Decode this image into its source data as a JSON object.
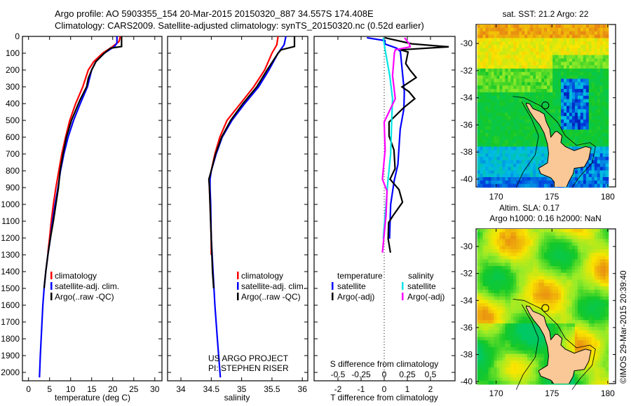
{
  "header": {
    "line1": "Argo profile: AO 5903355_154 20-Mar-2015 20150320_887 34.557S 174.408E",
    "line2": "Climatology: CARS2009. Satellite-adjusted climatology: synTS_20150320.nc (0.52d earlier)"
  },
  "credits": {
    "project": "US ARGO PROJECT",
    "pi": "PI: STEPHEN RISER",
    "imos": "©IMOS 29-Mar-2015 20:39:40"
  },
  "colors": {
    "climatology": "#ff0000",
    "satellite": "#0000ff",
    "argo": "#000000",
    "sal_satellite": "#00e5e5",
    "sal_argo": "#ff00ff",
    "land": "#f9c896"
  },
  "chart_data": [
    {
      "type": "line",
      "title": "",
      "xlabel": "temperature (deg C)",
      "ylabel": "",
      "xlim": [
        -1.45,
        31.7
      ],
      "ylim": [
        2050,
        0
      ],
      "xticks": [
        "0",
        "5",
        "10",
        "15",
        "20",
        "25",
        "30"
      ],
      "yticks": [
        "0",
        "100",
        "200",
        "300",
        "400",
        "500",
        "600",
        "700",
        "800",
        "900",
        "1000",
        "1100",
        "1200",
        "1300",
        "1400",
        "1500",
        "1600",
        "1700",
        "1800",
        "1900",
        "2000"
      ],
      "legend": [
        "climatology",
        "satellite-adj. clim.",
        "Argo(..raw -QC)"
      ],
      "series": [
        {
          "name": "climatology",
          "depth": [
            0,
            30,
            60,
            100,
            150,
            200,
            300,
            400,
            500,
            600,
            700,
            800,
            900,
            1000,
            1100,
            1200,
            1290
          ],
          "values": [
            21.8,
            21.5,
            20,
            17.6,
            15.5,
            14.2,
            12.9,
            11.2,
            9.8,
            8.8,
            7.9,
            7.2,
            6.5,
            5.9,
            5.4,
            5.0,
            4.6
          ]
        },
        {
          "name": "satellite-adj. clim.",
          "depth": [
            0,
            40,
            60,
            100,
            150,
            200,
            300,
            400,
            500,
            600,
            700,
            800,
            900,
            1000,
            1100,
            1200,
            1300,
            1400,
            1500,
            1600,
            1700,
            1800,
            1900,
            2030
          ],
          "values": [
            21,
            21,
            20.4,
            18,
            16,
            15,
            14,
            12.3,
            10.7,
            9.4,
            8.4,
            7.6,
            7.0,
            6.3,
            5.7,
            5.2,
            4.6,
            4.1,
            3.7,
            3.4,
            3.2,
            3.0,
            2.8,
            2.6
          ]
        },
        {
          "name": "Argo(..raw -QC)",
          "depth": [
            0,
            60,
            70,
            100,
            150,
            200,
            250,
            300,
            380,
            500,
            600,
            700,
            800,
            900,
            1000,
            1100,
            1200,
            1300,
            1400,
            1500
          ],
          "values": [
            22.1,
            22.1,
            19.5,
            18,
            16,
            15,
            14.2,
            13.8,
            12.2,
            10.2,
            9,
            8.2,
            7.5,
            7.1,
            6.5,
            5.9,
            5.2,
            4.6,
            4.1,
            3.7
          ]
        }
      ]
    },
    {
      "type": "line",
      "xlabel": "salinity",
      "xlim": [
        33.78,
        36.09
      ],
      "ylim": [
        2050,
        0
      ],
      "xticks": [
        "34",
        "34.5",
        "35",
        "35.5",
        "36"
      ],
      "legend": [
        "climatology",
        "satellite-adj. clim.",
        "Argo(..raw -QC)"
      ],
      "series": [
        {
          "name": "climatology",
          "depth": [
            0,
            50,
            100,
            200,
            300,
            400,
            500,
            600,
            700,
            800,
            850,
            900,
            1000,
            1100,
            1200,
            1300
          ],
          "values": [
            35.6,
            35.58,
            35.5,
            35.38,
            35.2,
            34.98,
            34.76,
            34.64,
            34.56,
            34.5,
            34.47,
            34.47,
            34.48,
            34.49,
            34.5,
            34.5
          ]
        },
        {
          "name": "satellite-adj. clim.",
          "depth": [
            0,
            50,
            100,
            200,
            300,
            400,
            500,
            600,
            700,
            800,
            850,
            900,
            1000,
            1200,
            1400,
            1600,
            1800,
            2030
          ],
          "values": [
            35.73,
            35.7,
            35.6,
            35.45,
            35.28,
            35.05,
            34.84,
            34.68,
            34.58,
            34.5,
            34.48,
            34.48,
            34.49,
            34.5,
            34.53,
            34.56,
            34.6,
            34.65
          ]
        },
        {
          "name": "Argo(..raw -QC)",
          "depth": [
            0,
            60,
            80,
            100,
            200,
            300,
            400,
            500,
            600,
            700,
            800,
            850,
            900,
            1000,
            1200,
            1400,
            1500
          ],
          "values": [
            35.87,
            35.87,
            35.65,
            35.6,
            35.42,
            35.25,
            35.02,
            34.82,
            34.67,
            34.57,
            34.5,
            34.46,
            34.47,
            34.48,
            34.5,
            34.52,
            34.54
          ]
        }
      ]
    },
    {
      "type": "line",
      "xlabel": "T difference from climatology",
      "x2label": "S difference from climatology",
      "xlim": [
        -3.03,
        3.06
      ],
      "ylim": [
        2050,
        0
      ],
      "xticks": [
        "-2",
        "-1",
        "0",
        "1",
        "2"
      ],
      "x2ticks": [
        "-0.5",
        "-0.25",
        "0",
        "0.25",
        "0.5"
      ],
      "legend_titles": [
        "temperature",
        "salinity"
      ],
      "legend": [
        "satellite",
        "Argo(-adj)",
        "satellite",
        "Argo(-adj)"
      ],
      "series": [
        {
          "name": "T satellite",
          "depth": [
            8,
            25,
            45,
            70,
            90,
            233,
            330,
            430,
            553,
            763,
            860,
            1000,
            1204
          ],
          "values": [
            -0.75,
            0.03,
            0.03,
            0.54,
            0.7,
            0.8,
            0.87,
            0.85,
            0.69,
            0.59,
            0.43,
            0.28,
            0.23
          ]
        },
        {
          "name": "T Argo(-adj)",
          "depth": [
            8,
            44,
            62,
            80,
            93,
            162,
            203,
            245,
            301,
            329,
            371,
            426,
            510,
            593,
            676,
            787,
            850,
            912,
            987,
            1065,
            1108,
            1204,
            1287
          ],
          "values": [
            0.03,
            1.2,
            2.79,
            0.7,
            1.03,
            0.93,
            1.13,
            1.38,
            0.77,
            1.07,
            1.32,
            0.83,
            0.21,
            0.21,
            0.42,
            0.47,
            0.25,
            0.64,
            0.79,
            0.39,
            0.19,
            0.17,
            0.27
          ]
        },
        {
          "name": "S satellite",
          "depth": [
            8,
            80,
            233,
            371,
            510,
            700,
            860,
            1065,
            1204
          ],
          "values": [
            -0.01,
            0.01,
            0.06,
            0.09,
            0.08,
            0.07,
            0.04,
            0.01,
            -0.01
          ]
        },
        {
          "name": "S Argo(-adj)",
          "depth": [
            8,
            44,
            62,
            80,
            100,
            233,
            371,
            510,
            676,
            850,
            920,
            1065,
            1287
          ],
          "values": [
            0.22,
            0.27,
            0.28,
            0.12,
            0.11,
            0.09,
            0.12,
            0.0,
            0.01,
            -0.02,
            0.03,
            0.02,
            -0.02
          ]
        }
      ]
    }
  ],
  "maps": [
    {
      "title": "sat. SST: 21.2 Argo: 22",
      "lon_ticks": [
        "170",
        "175",
        "180"
      ],
      "lat_ticks": [
        "-30",
        "-32",
        "-34",
        "-36",
        "-38",
        "-40"
      ],
      "argo_lon": 174.408,
      "argo_lat": -34.557
    },
    {
      "title1": "Altim. SLA: 0.17",
      "title2": "Argo h1000: 0.16 h2000: NaN",
      "lon_ticks": [
        "170",
        "175",
        "180"
      ],
      "lat_ticks": [
        "-30",
        "-32",
        "-34",
        "-36",
        "-38",
        "-40"
      ],
      "argo_lon": 174.408,
      "argo_lat": -34.557
    }
  ]
}
